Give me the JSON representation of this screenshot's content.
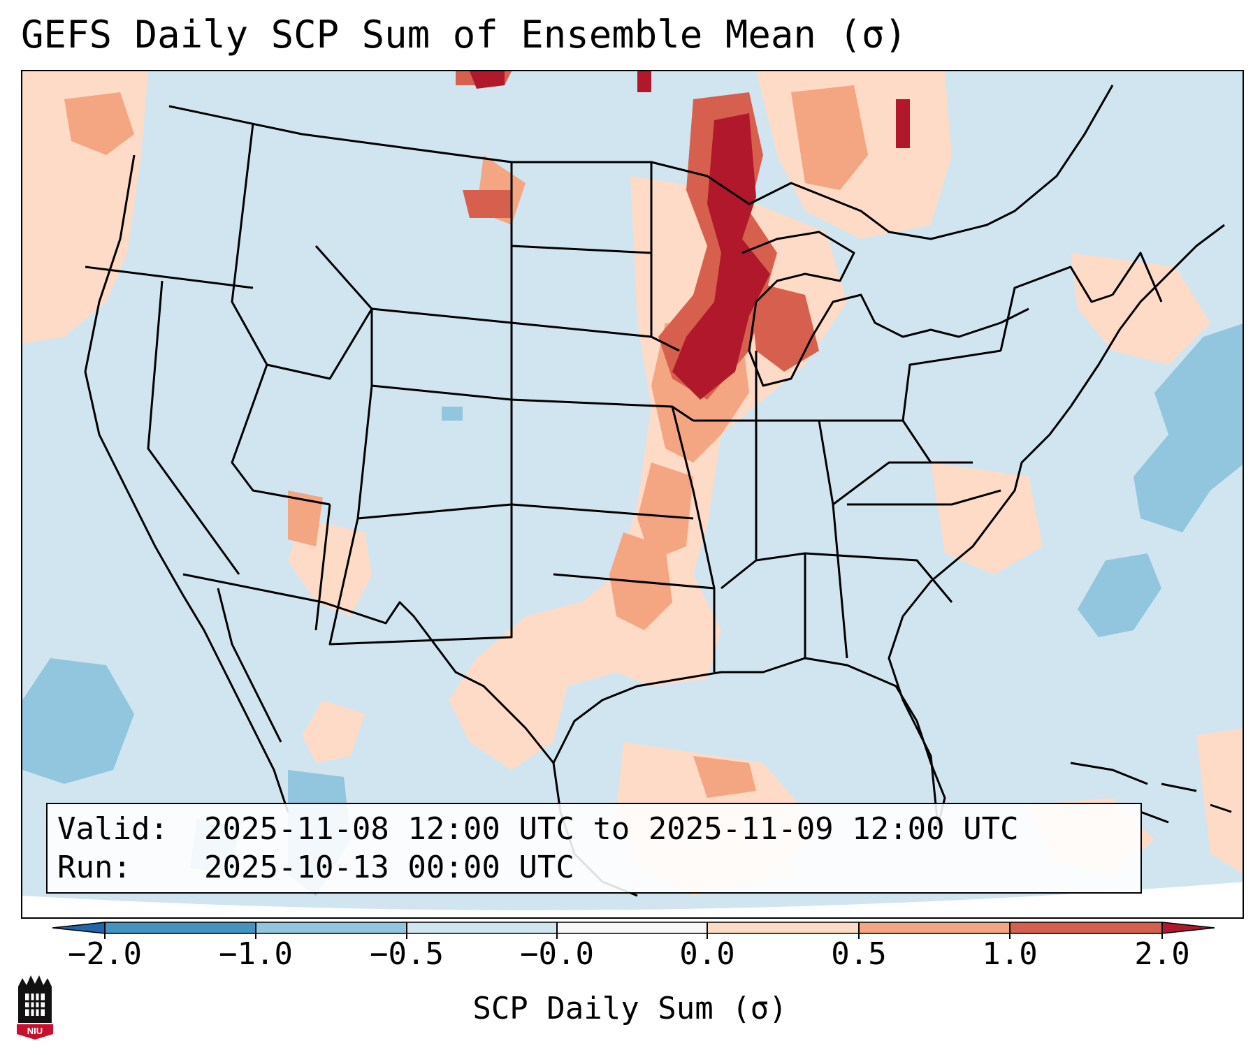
{
  "title": "GEFS Daily SCP Sum of Ensemble Mean (σ)",
  "info": {
    "valid_label": "Valid:",
    "valid_value": "2025-11-08 12:00 UTC to 2025-11-09 12:00 UTC",
    "run_label": "Run:",
    "run_value": "2025-10-13 00:00 UTC"
  },
  "colorbar": {
    "title": "SCP Daily Sum (σ)",
    "ticks": [
      "−2.0",
      "−1.0",
      "−0.5",
      "−0.0",
      "0.0",
      "0.5",
      "1.0",
      "2.0"
    ],
    "bins": [
      {
        "range": "< -2.0",
        "color": "#2166ac"
      },
      {
        "range": "-2.0 to -1.0",
        "color": "#4393c3"
      },
      {
        "range": "-1.0 to -0.5",
        "color": "#92c5de"
      },
      {
        "range": "-0.5 to -0.0",
        "color": "#d1e5f0"
      },
      {
        "range": "-0.0 to 0.0",
        "color": "#f7f7f7"
      },
      {
        "range": "0.0 to 0.5",
        "color": "#fddbc7"
      },
      {
        "range": "0.5 to 1.0",
        "color": "#f4a582"
      },
      {
        "range": "1.0 to 2.0",
        "color": "#d6604d"
      },
      {
        "range": "> 2.0",
        "color": "#b2182b"
      }
    ]
  },
  "logo": {
    "text": "NIU",
    "icon": "niu-logo-icon"
  },
  "map": {
    "projection": "Lambert conformal, CONUS",
    "background_anomaly_color": "#d1e5f0",
    "regions": [
      {
        "name": "upper-midwest-max",
        "level": "> 2.0",
        "color": "#b2182b"
      },
      {
        "name": "upper-midwest-high",
        "level": "1.0 to 2.0",
        "color": "#d6604d"
      },
      {
        "name": "mississippi-valley",
        "level": "0.5 to 1.0",
        "color": "#f4a582"
      },
      {
        "name": "southern-plains",
        "level": "0.0 to 0.5",
        "color": "#fddbc7"
      },
      {
        "name": "gulf-of-mexico",
        "level": "0.0 to 0.5",
        "color": "#fddbc7"
      },
      {
        "name": "pacific-northwest",
        "level": "0.0 to 0.5",
        "color": "#fddbc7"
      },
      {
        "name": "canada-east",
        "level": "0.0 to 0.5",
        "color": "#fddbc7"
      },
      {
        "name": "atlantic-offshore",
        "level": "-1.0 to -0.5",
        "color": "#92c5de"
      },
      {
        "name": "pacific-offshore",
        "level": "-1.0 to -0.5",
        "color": "#92c5de"
      }
    ]
  }
}
